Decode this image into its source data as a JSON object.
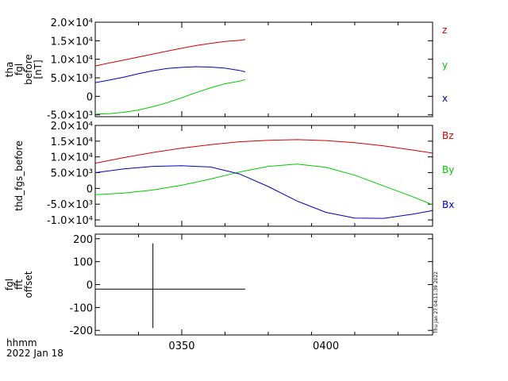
{
  "colors": {
    "red": "#d40000",
    "green": "#00cc00",
    "blue": "#0000c0",
    "black": "#000000"
  },
  "footer": {
    "line1": "hhmm",
    "line2": "2022 Jan 18"
  },
  "timestamp": "Thu Jan 27 04:11:39 2022",
  "x_axis": {
    "min": 320,
    "max": 437,
    "tick_values": [
      335,
      350,
      365,
      380,
      395,
      410,
      425
    ],
    "tick_labels": [
      "0350",
      "0400"
    ],
    "label_values": [
      350,
      400
    ]
  },
  "chart_data": [
    {
      "type": "line",
      "title": "",
      "ylabel": [
        "tha",
        "fgl",
        "before",
        "[nT]"
      ],
      "ylim": [
        -5500,
        20000
      ],
      "yticks": [
        "2.0×10⁴",
        "1.5×10⁴",
        "1.0×10⁴",
        "5.0×10³",
        "0",
        "-5.0×10³"
      ],
      "ytick_values": [
        20000,
        15000,
        10000,
        5000,
        0,
        -5000
      ],
      "x": [
        320,
        325,
        330,
        335,
        340,
        345,
        350,
        355,
        360,
        365,
        370,
        372
      ],
      "series": [
        {
          "name": "z",
          "color": "red",
          "values": [
            8200,
            9000,
            9800,
            10600,
            11400,
            12200,
            13000,
            13700,
            14300,
            14800,
            15100,
            15300
          ]
        },
        {
          "name": "y",
          "color": "green",
          "values": [
            -4800,
            -4700,
            -4300,
            -3700,
            -2800,
            -1700,
            -400,
            1000,
            2300,
            3400,
            4100,
            4500
          ]
        },
        {
          "name": "x",
          "color": "blue",
          "values": [
            3700,
            4400,
            5200,
            6100,
            6900,
            7500,
            7800,
            8000,
            7900,
            7600,
            7000,
            6600
          ]
        }
      ],
      "legend": [
        "z",
        "y",
        "x"
      ]
    },
    {
      "type": "line",
      "title": "",
      "ylabel": [
        "thd_fgs_before"
      ],
      "ylim": [
        -12000,
        20000
      ],
      "yticks": [
        "2.0×10⁴",
        "1.5×10⁴",
        "1.0×10⁴",
        "5.0×10³",
        "0",
        "-5.0×10³",
        "-1.0×10⁴"
      ],
      "ytick_values": [
        20000,
        15000,
        10000,
        5000,
        0,
        -5000,
        -10000
      ],
      "x": [
        320,
        330,
        340,
        350,
        360,
        370,
        380,
        390,
        400,
        410,
        420,
        430,
        437
      ],
      "series": [
        {
          "name": "Bz",
          "color": "red",
          "values": [
            8000,
            9800,
            11400,
            12800,
            13900,
            14800,
            15300,
            15500,
            15200,
            14500,
            13500,
            12200,
            11200
          ]
        },
        {
          "name": "By",
          "color": "green",
          "values": [
            -2000,
            -1500,
            -500,
            1000,
            3000,
            5200,
            7000,
            7700,
            6700,
            4200,
            800,
            -2600,
            -5200
          ]
        },
        {
          "name": "Bx",
          "color": "blue",
          "values": [
            5000,
            6200,
            7000,
            7200,
            6800,
            4600,
            600,
            -4000,
            -7600,
            -9400,
            -9500,
            -8200,
            -7000
          ]
        }
      ],
      "legend": [
        "Bz",
        "By",
        "Bx"
      ]
    },
    {
      "type": "line",
      "title": "",
      "ylabel": [
        "fgl",
        "fft",
        "offset"
      ],
      "ylim": [
        -220,
        220
      ],
      "yticks": [
        "200",
        "100",
        "0",
        "-100",
        "-200"
      ],
      "ytick_values": [
        200,
        100,
        0,
        -100,
        -200
      ],
      "x": [
        320,
        339.6,
        340,
        340.4,
        372
      ],
      "series": [
        {
          "name": "",
          "color": "black",
          "values": [
            -20,
            -20,
            -20,
            -20,
            -20
          ]
        }
      ],
      "spikes": [
        {
          "x": 340,
          "ymin": -190,
          "ymax": 180
        }
      ],
      "legend": []
    }
  ]
}
